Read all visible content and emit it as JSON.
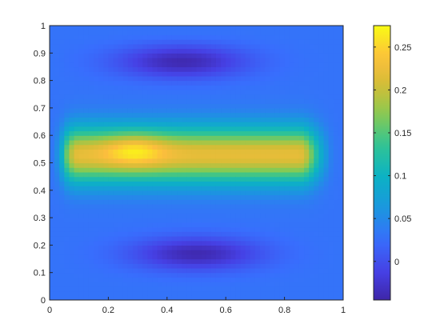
{
  "chart_data": {
    "type": "heatmap",
    "title": "",
    "xlabel": "",
    "ylabel": "",
    "xlim": [
      0,
      1
    ],
    "ylim": [
      0,
      1
    ],
    "x_ticks": [
      "0",
      "0.2",
      "0.4",
      "0.6",
      "0.8",
      "1"
    ],
    "y_ticks": [
      "0",
      "0.1",
      "0.2",
      "0.3",
      "0.4",
      "0.5",
      "0.6",
      "0.7",
      "0.8",
      "0.9",
      "1"
    ],
    "colormap": "parula",
    "colorbar": {
      "location": "right",
      "range": [
        -0.045,
        0.275
      ],
      "ticks": [
        "0",
        "0.05",
        "0.1",
        "0.15",
        "0.2",
        "0.25"
      ]
    },
    "grid_size": [
      20,
      20
    ],
    "grid": false,
    "field_features": [
      {
        "kind": "maximum",
        "x": 0.29,
        "y": 0.55,
        "value": 0.27
      },
      {
        "kind": "ridge",
        "x": [
          0.1,
          0.85
        ],
        "y": 0.53,
        "value": 0.22
      },
      {
        "kind": "minimum",
        "x": 0.45,
        "y": 0.87,
        "value": -0.04
      },
      {
        "kind": "minimum",
        "x": 0.5,
        "y": 0.17,
        "value": -0.04
      }
    ],
    "edge_value": 0.03
  }
}
